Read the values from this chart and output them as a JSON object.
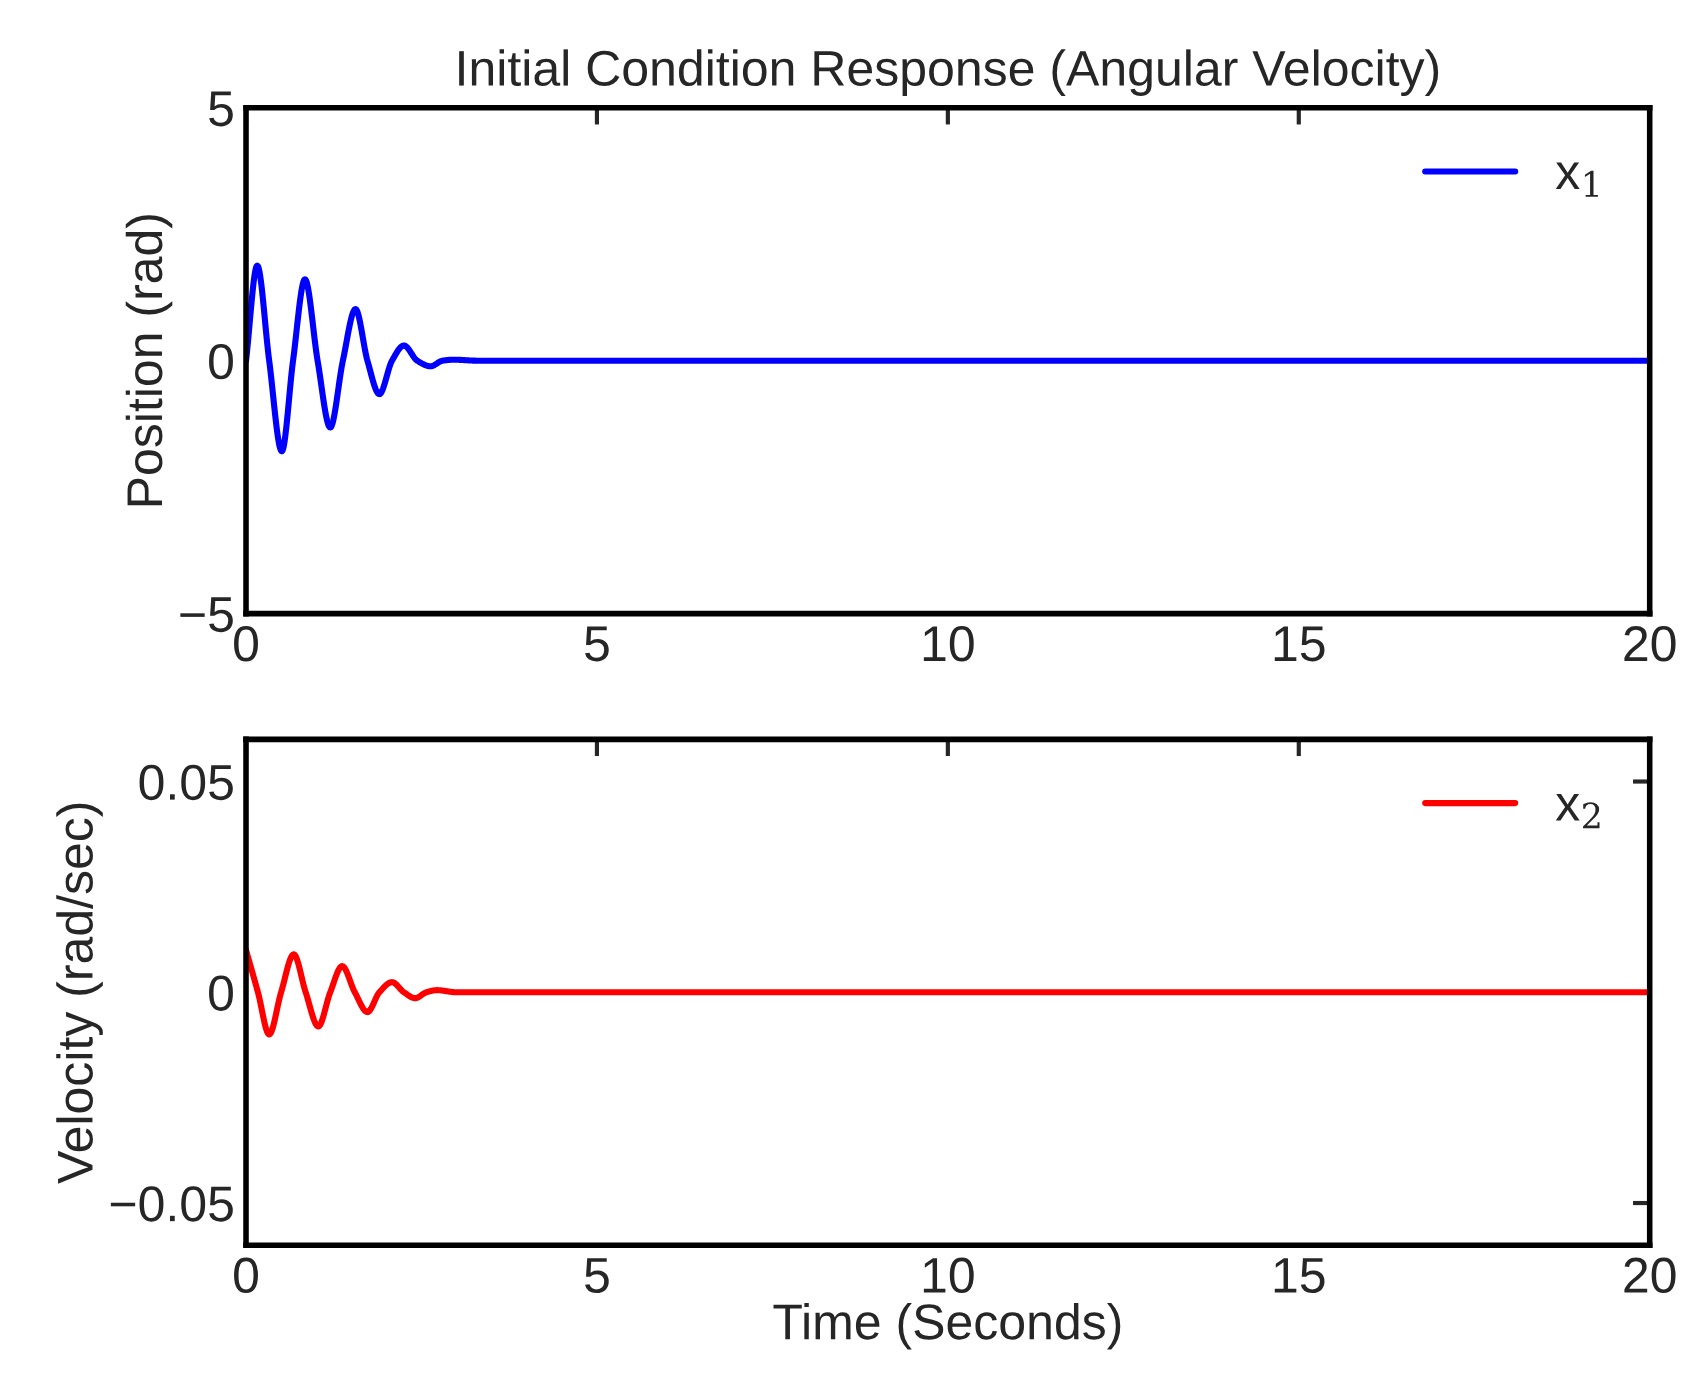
{
  "chart_data": [
    {
      "type": "line",
      "title": "Initial Condition Response (Angular Velocity)",
      "ylabel": "Position (rad)",
      "xlim": [
        0,
        20
      ],
      "ylim": [
        -5,
        5
      ],
      "xticks": [
        0,
        5,
        10,
        15,
        20
      ],
      "yticks": [
        -5,
        0,
        5
      ],
      "grid": false,
      "legend": "top right",
      "series": [
        {
          "name": "x$_{1}$",
          "color": "#0000ff",
          "x": [
            0,
            0.16,
            0.33,
            0.51,
            0.67,
            0.84,
            1.02,
            1.2,
            1.38,
            1.56,
            1.73,
            1.9,
            2.08,
            2.25,
            2.44,
            2.63,
            2.8,
            2.96,
            3.3,
            20
          ],
          "values": [
            0,
            1.88,
            0,
            -1.79,
            0,
            1.61,
            0,
            -1.32,
            0,
            1.02,
            0,
            -0.66,
            0,
            0.3,
            0,
            -0.11,
            0,
            0.02,
            0,
            0
          ]
        }
      ]
    },
    {
      "type": "line",
      "xlabel": "Time (Seconds)",
      "ylabel": "Velocity (rad/sec)",
      "xlim": [
        0,
        20
      ],
      "ylim": [
        -0.06,
        0.06
      ],
      "xticks": [
        0,
        5,
        10,
        15,
        20
      ],
      "yticks": [
        -0.05,
        0,
        0.05
      ],
      "grid": false,
      "legend": "top right",
      "series": [
        {
          "name": "x$_{2}$",
          "color": "#ff0000",
          "x": [
            0,
            0.17,
            0.33,
            0.5,
            0.68,
            0.85,
            1.03,
            1.2,
            1.37,
            1.55,
            1.73,
            1.9,
            2.08,
            2.25,
            2.41,
            2.57,
            2.72,
            3.0,
            20
          ],
          "values": [
            0.01,
            0,
            -0.01,
            0,
            0.009,
            0,
            -0.0081,
            0,
            0.0062,
            0,
            -0.0047,
            0,
            0.0024,
            0,
            -0.0014,
            0,
            0.0005,
            0,
            0
          ]
        }
      ]
    }
  ]
}
